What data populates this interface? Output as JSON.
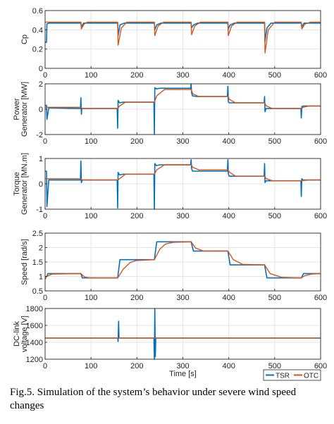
{
  "caption": "Fig.5. Simulation of the system’s behavior under severe wind speed changes",
  "chart_data": [
    {
      "type": "line",
      "ylabel": [
        "",
        "Cp"
      ],
      "xlim": [
        0,
        600
      ],
      "ylim": [
        0,
        0.6
      ],
      "xticks": [
        "0",
        "100",
        "200",
        "300",
        "400",
        "500",
        "600"
      ],
      "yticks": [
        "0",
        "0.2",
        "0.4",
        "0.6"
      ],
      "grid": true,
      "series": [
        {
          "name": "TSR",
          "color": "#0072BD",
          "x": [
            0,
            3,
            4,
            8,
            78,
            79,
            84,
            158,
            159,
            163,
            172,
            238,
            239,
            243,
            252,
            318,
            319,
            323,
            332,
            398,
            399,
            403,
            412,
            478,
            479,
            483,
            492,
            558,
            559,
            564,
            600
          ],
          "y": [
            0.27,
            0.27,
            0.46,
            0.47,
            0.47,
            0.43,
            0.47,
            0.47,
            0.34,
            0.45,
            0.47,
            0.47,
            0.4,
            0.45,
            0.47,
            0.47,
            0.42,
            0.45,
            0.47,
            0.47,
            0.41,
            0.45,
            0.47,
            0.47,
            0.28,
            0.42,
            0.47,
            0.47,
            0.43,
            0.47,
            0.47
          ]
        },
        {
          "name": "OTC",
          "color": "#D95319",
          "x": [
            0,
            78,
            79,
            85,
            92,
            158,
            159,
            166,
            178,
            238,
            239,
            246,
            258,
            318,
            319,
            326,
            338,
            398,
            399,
            406,
            418,
            478,
            479,
            486,
            500,
            558,
            559,
            566,
            578,
            600
          ],
          "y": [
            0.48,
            0.48,
            0.41,
            0.46,
            0.48,
            0.48,
            0.24,
            0.42,
            0.48,
            0.48,
            0.34,
            0.44,
            0.48,
            0.48,
            0.35,
            0.44,
            0.48,
            0.48,
            0.34,
            0.44,
            0.48,
            0.48,
            0.16,
            0.4,
            0.48,
            0.48,
            0.41,
            0.46,
            0.48,
            0.48
          ]
        }
      ]
    },
    {
      "type": "line",
      "ylabel": [
        "Power",
        "Generator [MW]"
      ],
      "xlim": [
        0,
        600
      ],
      "ylim": [
        -2,
        2
      ],
      "xticks": [
        "0",
        "100",
        "200",
        "300",
        "400",
        "500",
        "600"
      ],
      "yticks": [
        "-2",
        "0",
        "2"
      ],
      "grid": true,
      "series": [
        {
          "name": "TSR",
          "color": "#0072BD",
          "x": [
            0,
            3,
            4,
            8,
            77,
            78,
            79,
            80,
            157,
            158,
            159,
            162,
            170,
            237,
            238,
            239,
            242,
            250,
            317,
            318,
            319,
            321,
            330,
            397,
            398,
            399,
            401,
            410,
            477,
            478,
            479,
            481,
            490,
            557,
            558,
            559,
            562,
            600
          ],
          "y": [
            0.3,
            0.3,
            -0.8,
            0.1,
            0.05,
            0.9,
            -0.4,
            0.05,
            0.05,
            -1.5,
            0.7,
            0.5,
            0.55,
            0.55,
            -2.0,
            1.7,
            1.6,
            1.65,
            1.65,
            2.0,
            1.3,
            1.05,
            1.0,
            1.0,
            1.8,
            0.6,
            0.5,
            0.5,
            0.5,
            1.0,
            -0.2,
            0.05,
            0.05,
            0.05,
            -0.7,
            0.2,
            0.25,
            0.25
          ]
        },
        {
          "name": "OTC",
          "color": "#D95319",
          "x": [
            0,
            78,
            81,
            90,
            158,
            162,
            175,
            238,
            243,
            260,
            318,
            322,
            335,
            398,
            402,
            415,
            478,
            482,
            495,
            558,
            562,
            575,
            600
          ],
          "y": [
            0.15,
            0.15,
            0.05,
            0.05,
            0.05,
            0.25,
            0.55,
            0.55,
            1.05,
            1.55,
            1.55,
            1.2,
            1.0,
            1.0,
            0.75,
            0.5,
            0.5,
            0.25,
            0.05,
            0.05,
            0.15,
            0.25,
            0.25
          ]
        }
      ]
    },
    {
      "type": "line",
      "ylabel": [
        "Torque",
        "Generator [MN.m]"
      ],
      "xlim": [
        0,
        600
      ],
      "ylim": [
        -1,
        1
      ],
      "xticks": [
        "0",
        "100",
        "200",
        "300",
        "400",
        "500",
        "600"
      ],
      "yticks": [
        "-1",
        "0",
        "1"
      ],
      "grid": true,
      "series": [
        {
          "name": "TSR",
          "color": "#0072BD",
          "x": [
            0,
            3,
            4,
            8,
            77,
            78,
            79,
            81,
            157,
            158,
            159,
            162,
            170,
            237,
            238,
            239,
            242,
            250,
            317,
            318,
            319,
            321,
            330,
            397,
            398,
            399,
            401,
            410,
            477,
            478,
            479,
            481,
            490,
            557,
            558,
            559,
            562,
            600
          ],
          "y": [
            0.5,
            0.5,
            -0.9,
            0.15,
            0.15,
            0.9,
            0.05,
            0.15,
            0.15,
            -0.95,
            0.45,
            0.35,
            0.38,
            0.38,
            -1.0,
            0.8,
            0.72,
            0.75,
            0.75,
            0.95,
            0.6,
            0.5,
            0.5,
            0.5,
            0.95,
            0.4,
            0.3,
            0.3,
            0.3,
            0.8,
            0.05,
            0.12,
            0.12,
            0.12,
            -0.5,
            0.2,
            0.15,
            0.15
          ]
        },
        {
          "name": "OTC",
          "color": "#D95319",
          "x": [
            0,
            78,
            81,
            90,
            158,
            162,
            175,
            238,
            243,
            260,
            318,
            322,
            335,
            398,
            402,
            415,
            478,
            482,
            495,
            558,
            562,
            575,
            600
          ],
          "y": [
            0.2,
            0.2,
            0.15,
            0.15,
            0.15,
            0.2,
            0.38,
            0.38,
            0.55,
            0.75,
            0.75,
            0.65,
            0.55,
            0.55,
            0.45,
            0.3,
            0.3,
            0.2,
            0.12,
            0.12,
            0.13,
            0.15,
            0.15
          ]
        }
      ]
    },
    {
      "type": "line",
      "ylabel": [
        "",
        "Speed [rad/s]"
      ],
      "xlim": [
        0,
        600
      ],
      "ylim": [
        0.5,
        2.5
      ],
      "xticks": [
        "0",
        "100",
        "200",
        "300",
        "400",
        "500",
        "600"
      ],
      "yticks": [
        "0.5",
        "1",
        "1.5",
        "2",
        "2.5"
      ],
      "grid": true,
      "series": [
        {
          "name": "TSR",
          "color": "#0072BD",
          "x": [
            0,
            4,
            6,
            78,
            81,
            158,
            163,
            238,
            243,
            318,
            323,
            398,
            403,
            478,
            483,
            558,
            563,
            600
          ],
          "y": [
            1.0,
            1.0,
            1.1,
            1.1,
            0.95,
            0.95,
            1.58,
            1.58,
            2.2,
            2.2,
            1.88,
            1.88,
            1.4,
            1.4,
            0.95,
            0.95,
            1.1,
            1.1
          ]
        },
        {
          "name": "OTC",
          "color": "#D95319",
          "x": [
            0,
            3,
            15,
            78,
            86,
            98,
            158,
            170,
            185,
            198,
            238,
            250,
            262,
            278,
            318,
            328,
            345,
            398,
            410,
            430,
            478,
            490,
            515,
            558,
            566,
            580,
            600
          ],
          "y": [
            0.9,
            1.0,
            1.08,
            1.1,
            0.98,
            0.95,
            0.95,
            1.25,
            1.48,
            1.55,
            1.58,
            1.95,
            2.12,
            2.18,
            2.2,
            1.98,
            1.88,
            1.88,
            1.58,
            1.42,
            1.4,
            1.1,
            0.97,
            0.95,
            1.03,
            1.08,
            1.1
          ]
        }
      ]
    },
    {
      "type": "line",
      "ylabel": [
        "DC-link",
        "voltage [V]"
      ],
      "xlabel": "Time [s]",
      "xlim": [
        0,
        600
      ],
      "ylim": [
        1200,
        1800
      ],
      "xticks": [
        "0",
        "100",
        "200",
        "300",
        "400",
        "500",
        "600"
      ],
      "yticks": [
        "1200",
        "1400",
        "1600",
        "1800"
      ],
      "grid": true,
      "series": [
        {
          "name": "TSR",
          "color": "#0072BD",
          "x": [
            0,
            158,
            159,
            160,
            161,
            237,
            238,
            239,
            240,
            241,
            600
          ],
          "y": [
            1450,
            1450,
            1410,
            1650,
            1450,
            1450,
            1200,
            1800,
            1230,
            1450,
            1450
          ]
        },
        {
          "name": "OTC",
          "color": "#D95319",
          "x": [
            0,
            600
          ],
          "y": [
            1450,
            1450
          ]
        }
      ]
    }
  ],
  "legend": {
    "placement": "bottom-right",
    "entries": [
      {
        "label": "TSR",
        "color": "#0072BD"
      },
      {
        "label": "OTC",
        "color": "#D95319"
      }
    ]
  }
}
